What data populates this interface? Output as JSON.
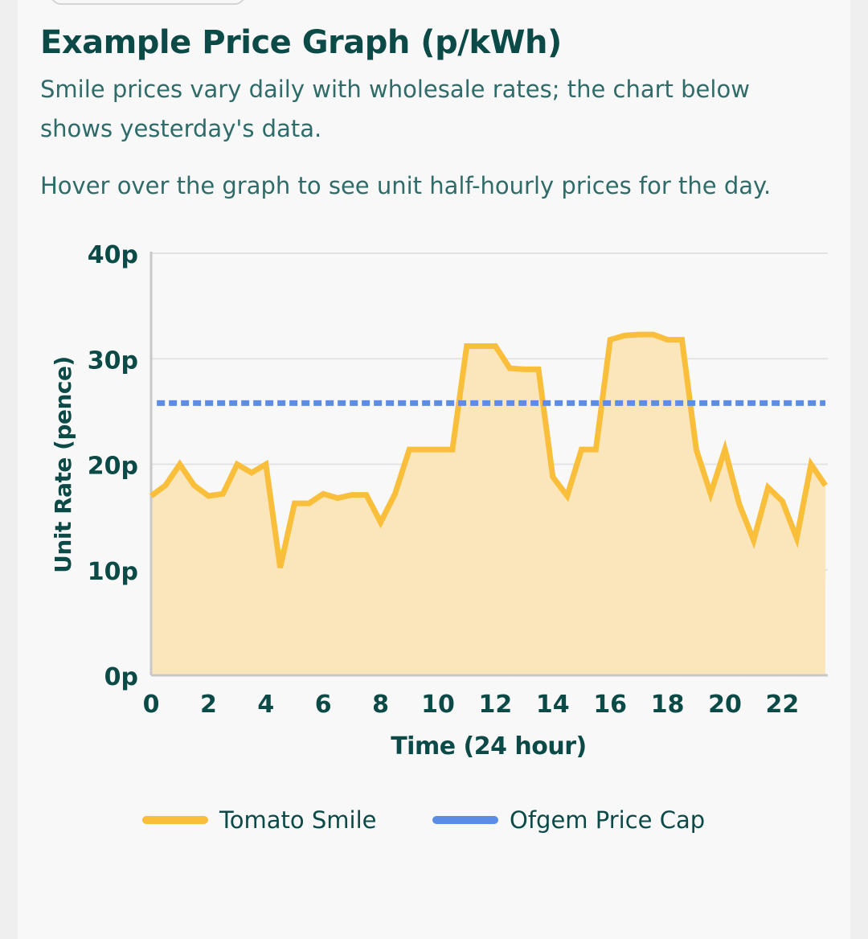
{
  "header": {
    "title": "Example Price Graph (p/kWh)",
    "description": "Smile prices vary daily with wholesale rates; the chart below shows yesterday's data.",
    "hint": "Hover over the graph to see unit half-hourly prices for the day."
  },
  "colors": {
    "heading": "#0b4a47",
    "body_text": "#2f6b68",
    "smile_line": "#f9be3a",
    "smile_fill": "#fbe6bb",
    "price_cap": "#5b8de6",
    "grid": "#e3e3e3"
  },
  "chart_data": {
    "type": "line",
    "title": "",
    "xlabel": "Time (24 hour)",
    "ylabel": "Unit Rate (pence)",
    "xlim": [
      0,
      23.5
    ],
    "ylim": [
      0,
      40
    ],
    "xticks": [
      0,
      2,
      4,
      6,
      8,
      10,
      12,
      14,
      16,
      18,
      20,
      22
    ],
    "xtick_labels": [
      "0",
      "2",
      "4",
      "6",
      "8",
      "10",
      "12",
      "14",
      "16",
      "18",
      "20",
      "22"
    ],
    "yticks": [
      0,
      10,
      20,
      30,
      40
    ],
    "ytick_labels": [
      "0p",
      "10p",
      "20p",
      "30p",
      "40p"
    ],
    "grid": true,
    "legend": "bottom",
    "series": [
      {
        "name": "Tomato Smile",
        "style": "area-line",
        "x": [
          0,
          0.5,
          1,
          1.5,
          2,
          2.5,
          3,
          3.5,
          4,
          4.5,
          5,
          5.5,
          6,
          6.5,
          7,
          7.5,
          8,
          8.5,
          9,
          9.5,
          10,
          10.5,
          11,
          11.5,
          12,
          12.5,
          13,
          13.5,
          14,
          14.5,
          15,
          15.5,
          16,
          16.5,
          17,
          17.5,
          18,
          18.5,
          19,
          19.5,
          20,
          20.5,
          21,
          21.5,
          22,
          22.5,
          23,
          23.5
        ],
        "values": [
          17,
          18,
          20,
          18,
          17,
          17.2,
          20,
          19.2,
          20,
          10.2,
          16.3,
          16.3,
          17.2,
          16.8,
          17.1,
          17.1,
          14.5,
          17.2,
          21.4,
          21.4,
          21.4,
          21.4,
          31.2,
          31.2,
          31.2,
          29.1,
          29.0,
          29.0,
          18.8,
          17.0,
          21.4,
          21.4,
          31.8,
          32.2,
          32.3,
          32.3,
          31.8,
          31.8,
          21.4,
          17.2,
          21.4,
          16.2,
          12.8,
          17.8,
          16.5,
          13.0,
          20.0,
          18.0
        ]
      },
      {
        "name": "Ofgem Price Cap",
        "style": "dashed",
        "x": [
          0.2,
          23.5
        ],
        "values": [
          25.8,
          25.8
        ]
      }
    ]
  }
}
